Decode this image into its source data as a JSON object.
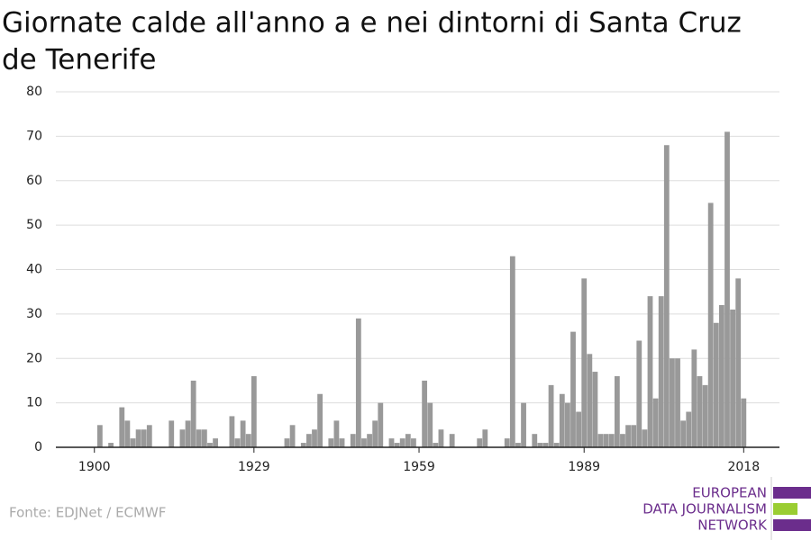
{
  "chart_data": {
    "type": "bar",
    "title_lines": [
      "Giornate calde all'anno a e nei dintorni di Santa Cruz",
      "de Tenerife"
    ],
    "x": [
      1900,
      1901,
      1902,
      1903,
      1904,
      1905,
      1906,
      1907,
      1908,
      1909,
      1910,
      1911,
      1912,
      1913,
      1914,
      1915,
      1916,
      1917,
      1918,
      1919,
      1920,
      1921,
      1922,
      1923,
      1924,
      1925,
      1926,
      1927,
      1928,
      1929,
      1930,
      1931,
      1932,
      1933,
      1934,
      1935,
      1936,
      1937,
      1938,
      1939,
      1940,
      1941,
      1942,
      1943,
      1944,
      1945,
      1946,
      1947,
      1948,
      1949,
      1950,
      1951,
      1952,
      1953,
      1954,
      1955,
      1956,
      1957,
      1958,
      1959,
      1960,
      1961,
      1962,
      1963,
      1964,
      1965,
      1966,
      1967,
      1968,
      1969,
      1970,
      1971,
      1972,
      1973,
      1974,
      1975,
      1976,
      1977,
      1978,
      1979,
      1980,
      1981,
      1982,
      1983,
      1984,
      1985,
      1986,
      1987,
      1988,
      1989,
      1990,
      1991,
      1992,
      1993,
      1994,
      1995,
      1996,
      1997,
      1998,
      1999,
      2000,
      2001,
      2002,
      2003,
      2004,
      2005,
      2006,
      2007,
      2008,
      2009,
      2010,
      2011,
      2012,
      2013,
      2014,
      2015,
      2016,
      2017,
      2018
    ],
    "values": [
      0,
      5,
      0,
      1,
      0,
      9,
      6,
      2,
      4,
      4,
      5,
      0,
      0,
      0,
      6,
      0,
      4,
      6,
      15,
      4,
      4,
      1,
      2,
      0,
      0,
      7,
      2,
      6,
      3,
      16,
      0,
      0,
      0,
      0,
      0,
      2,
      5,
      0,
      1,
      3,
      4,
      12,
      0,
      2,
      6,
      2,
      0,
      3,
      29,
      2,
      3,
      6,
      10,
      0,
      2,
      1,
      2,
      3,
      2,
      0,
      15,
      10,
      1,
      4,
      0,
      3,
      0,
      0,
      0,
      0,
      2,
      4,
      0,
      0,
      0,
      2,
      43,
      1,
      10,
      0,
      3,
      1,
      1,
      14,
      1,
      12,
      10,
      26,
      8,
      38,
      21,
      17,
      3,
      3,
      3,
      16,
      3,
      5,
      5,
      24,
      4,
      34,
      11,
      34,
      68,
      20,
      20,
      6,
      8,
      22,
      16,
      14,
      55,
      28,
      32,
      71,
      31,
      38,
      11
    ],
    "color": "#999999",
    "xlim": [
      1893,
      2024.5
    ],
    "xticks": [
      1900,
      1929,
      1959,
      1989,
      2018
    ],
    "ylim": [
      0,
      80
    ],
    "yticks": [
      0,
      10,
      20,
      30,
      40,
      50,
      60,
      70,
      80
    ],
    "grid": true,
    "source": "Fonte: EDJNet / ECMWF",
    "logo": [
      "EUROPEAN",
      "DATA JOURNALISM",
      "NETWORK"
    ]
  }
}
